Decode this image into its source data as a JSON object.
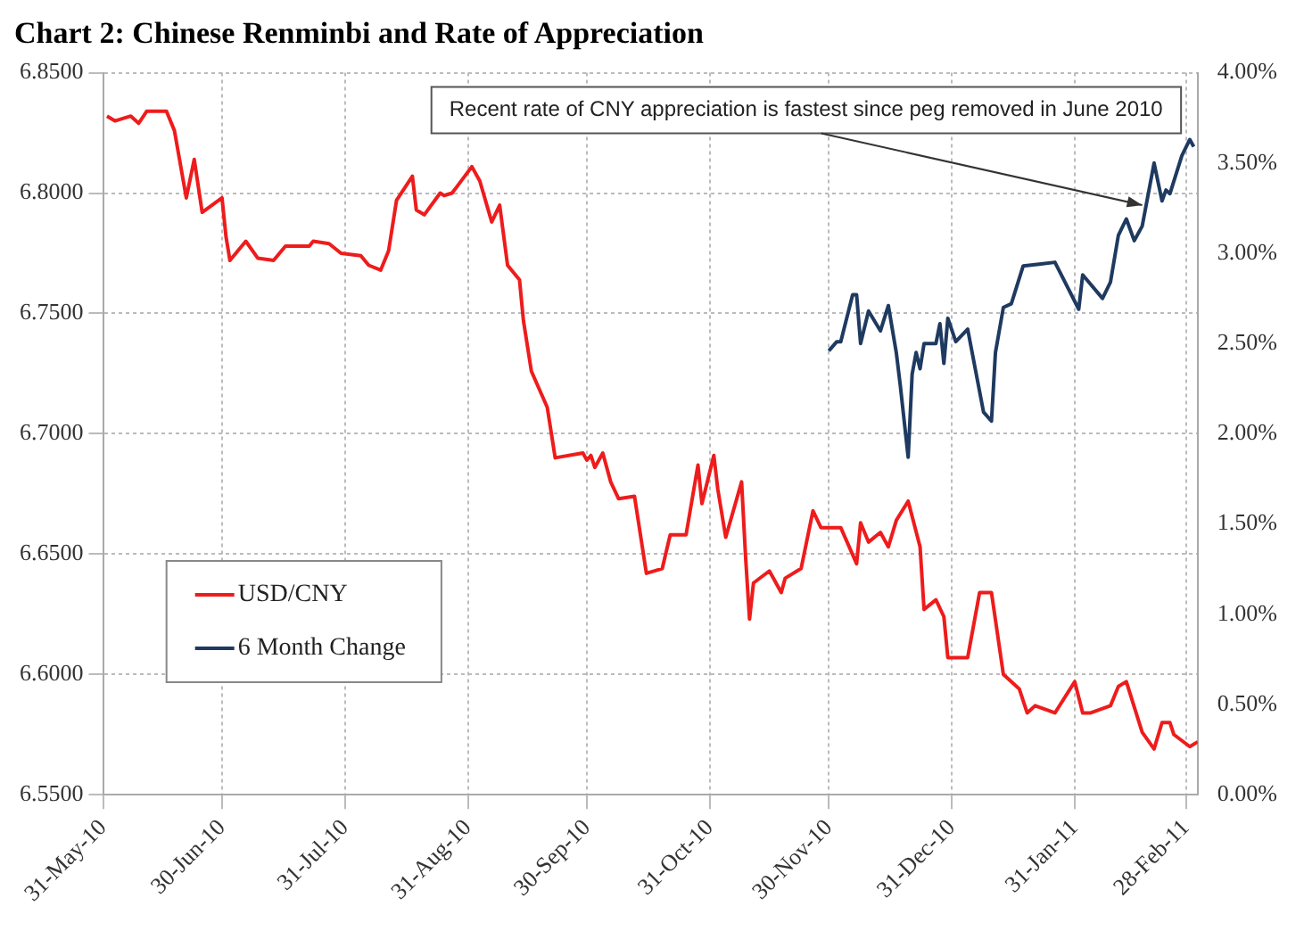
{
  "chart_data": {
    "type": "line",
    "title": "Chart 2: Chinese Renminbi and Rate of Appreciation",
    "xlim": [
      "2010-05-31",
      "2011-03-03"
    ],
    "xticks": [
      {
        "value": "2010-05-31",
        "label": "31-May-10"
      },
      {
        "value": "2010-06-30",
        "label": "30-Jun-10"
      },
      {
        "value": "2010-07-31",
        "label": "31-Jul-10"
      },
      {
        "value": "2010-08-31",
        "label": "31-Aug-10"
      },
      {
        "value": "2010-09-30",
        "label": "30-Sep-10"
      },
      {
        "value": "2010-10-31",
        "label": "31-Oct-10"
      },
      {
        "value": "2010-11-30",
        "label": "30-Nov-10"
      },
      {
        "value": "2010-12-31",
        "label": "31-Dec-10"
      },
      {
        "value": "2011-01-31",
        "label": "31-Jan-11"
      },
      {
        "value": "2011-02-28",
        "label": "28-Feb-11"
      }
    ],
    "ylim": [
      6.55,
      6.85
    ],
    "yticks": [
      {
        "value": 6.55,
        "label": "6.5500"
      },
      {
        "value": 6.6,
        "label": "6.6000"
      },
      {
        "value": 6.65,
        "label": "6.6500"
      },
      {
        "value": 6.7,
        "label": "6.7000"
      },
      {
        "value": 6.75,
        "label": "6.7500"
      },
      {
        "value": 6.8,
        "label": "6.8000"
      },
      {
        "value": 6.85,
        "label": "6.8500"
      }
    ],
    "y2lim": [
      0,
      4
    ],
    "y2ticks": [
      {
        "value": 0,
        "label": "0.00%"
      },
      {
        "value": 0.5,
        "label": "0.50%"
      },
      {
        "value": 1,
        "label": "1.00%"
      },
      {
        "value": 1.5,
        "label": "1.50%"
      },
      {
        "value": 2,
        "label": "2.00%"
      },
      {
        "value": 2.5,
        "label": "2.50%"
      },
      {
        "value": 3,
        "label": "3.00%"
      },
      {
        "value": 3.5,
        "label": "3.50%"
      },
      {
        "value": 4,
        "label": "4.00%"
      }
    ],
    "grid": true,
    "legend": "bottom left",
    "marker": "none",
    "line_style": "solid",
    "annotations": [
      {
        "text": "Recent rate of CNY appreciation is fastest since peg removed in June 2010",
        "x": "2011-02-17",
        "y": 6.795
      }
    ],
    "series": [
      {
        "name": "USD/CNY",
        "color": "#ee1c1c",
        "x": [
          "2010-06-01",
          "2010-06-03",
          "2010-06-07",
          "2010-06-09",
          "2010-06-11",
          "2010-06-16",
          "2010-06-18",
          "2010-06-21",
          "2010-06-23",
          "2010-06-25",
          "2010-06-30",
          "2010-07-01",
          "2010-07-02",
          "2010-07-06",
          "2010-07-09",
          "2010-07-13",
          "2010-07-16",
          "2010-07-22",
          "2010-07-23",
          "2010-07-27",
          "2010-07-30",
          "2010-08-04",
          "2010-08-06",
          "2010-08-09",
          "2010-08-11",
          "2010-08-13",
          "2010-08-17",
          "2010-08-18",
          "2010-08-20",
          "2010-08-24",
          "2010-08-25",
          "2010-08-27",
          "2010-09-01",
          "2010-09-03",
          "2010-09-06",
          "2010-09-08",
          "2010-09-10",
          "2010-09-13",
          "2010-09-14",
          "2010-09-16",
          "2010-09-20",
          "2010-09-22",
          "2010-09-29",
          "2010-09-30",
          "2010-10-01",
          "2010-10-02",
          "2010-10-04",
          "2010-10-06",
          "2010-10-08",
          "2010-10-12",
          "2010-10-15",
          "2010-10-19",
          "2010-10-21",
          "2010-10-25",
          "2010-10-28",
          "2010-10-29",
          "2010-11-01",
          "2010-11-02",
          "2010-11-04",
          "2010-11-08",
          "2010-11-09",
          "2010-11-10",
          "2010-11-11",
          "2010-11-15",
          "2010-11-16",
          "2010-11-18",
          "2010-11-19",
          "2010-11-23",
          "2010-11-26",
          "2010-11-28",
          "2010-12-03",
          "2010-12-07",
          "2010-12-08",
          "2010-12-10",
          "2010-12-13",
          "2010-12-15",
          "2010-12-17",
          "2010-12-20",
          "2010-12-23",
          "2010-12-24",
          "2010-12-27",
          "2010-12-29",
          "2010-12-30",
          "2011-01-04",
          "2011-01-07",
          "2011-01-10",
          "2011-01-13",
          "2011-01-17",
          "2011-01-19",
          "2011-01-21",
          "2011-01-26",
          "2011-01-31",
          "2011-02-02",
          "2011-02-04",
          "2011-02-09",
          "2011-02-11",
          "2011-02-13",
          "2011-02-17",
          "2011-02-20",
          "2011-02-22",
          "2011-02-24",
          "2011-02-25",
          "2011-03-01",
          "2011-03-03"
        ],
        "values": [
          6.832,
          6.83,
          6.832,
          6.829,
          6.834,
          6.834,
          6.826,
          6.798,
          6.814,
          6.792,
          6.798,
          6.782,
          6.772,
          6.78,
          6.773,
          6.772,
          6.778,
          6.778,
          6.78,
          6.779,
          6.775,
          6.774,
          6.77,
          6.768,
          6.776,
          6.797,
          6.807,
          6.793,
          6.791,
          6.8,
          6.799,
          6.8,
          6.811,
          6.805,
          6.788,
          6.795,
          6.77,
          6.764,
          6.747,
          6.726,
          6.711,
          6.69,
          6.692,
          6.689,
          6.691,
          6.686,
          6.692,
          6.68,
          6.673,
          6.674,
          6.642,
          6.644,
          6.658,
          6.658,
          6.687,
          6.671,
          6.691,
          6.677,
          6.657,
          6.68,
          6.649,
          6.623,
          6.638,
          6.643,
          6.64,
          6.634,
          6.64,
          6.644,
          6.668,
          6.661,
          6.661,
          6.646,
          6.663,
          6.655,
          6.659,
          6.653,
          6.664,
          6.672,
          6.653,
          6.627,
          6.631,
          6.624,
          6.607,
          6.607,
          6.634,
          6.634,
          6.6,
          6.594,
          6.584,
          6.587,
          6.584,
          6.597,
          6.584,
          6.584,
          6.587,
          6.595,
          6.597,
          6.576,
          6.569,
          6.58,
          6.58,
          6.575,
          6.57,
          6.572
        ]
      },
      {
        "name": "6 Month Change",
        "color": "#1f3a60",
        "axis": "y2",
        "x": [
          "2010-11-30",
          "2010-12-02",
          "2010-12-03",
          "2010-12-06",
          "2010-12-07",
          "2010-12-08",
          "2010-12-10",
          "2010-12-13",
          "2010-12-15",
          "2010-12-17",
          "2010-12-18",
          "2010-12-20",
          "2010-12-21",
          "2010-12-22",
          "2010-12-23",
          "2010-12-24",
          "2010-12-27",
          "2010-12-28",
          "2010-12-29",
          "2010-12-30",
          "2011-01-01",
          "2011-01-04",
          "2011-01-08",
          "2011-01-10",
          "2011-01-11",
          "2011-01-13",
          "2011-01-15",
          "2011-01-18",
          "2011-01-22",
          "2011-01-26",
          "2011-02-01",
          "2011-02-02",
          "2011-02-07",
          "2011-02-09",
          "2011-02-11",
          "2011-02-13",
          "2011-02-15",
          "2011-02-17",
          "2011-02-20",
          "2011-02-22",
          "2011-02-23",
          "2011-02-24",
          "2011-02-27",
          "2011-03-01",
          "2011-03-02"
        ],
        "values": [
          2.46,
          2.51,
          2.51,
          2.77,
          2.77,
          2.5,
          2.68,
          2.57,
          2.71,
          2.45,
          2.27,
          1.87,
          2.33,
          2.45,
          2.36,
          2.5,
          2.5,
          2.61,
          2.39,
          2.64,
          2.51,
          2.58,
          2.12,
          2.07,
          2.45,
          2.7,
          2.72,
          2.93,
          2.94,
          2.95,
          2.69,
          2.88,
          2.75,
          2.84,
          3.1,
          3.19,
          3.07,
          3.15,
          3.5,
          3.29,
          3.35,
          3.33,
          3.54,
          3.63,
          3.59
        ]
      }
    ]
  }
}
